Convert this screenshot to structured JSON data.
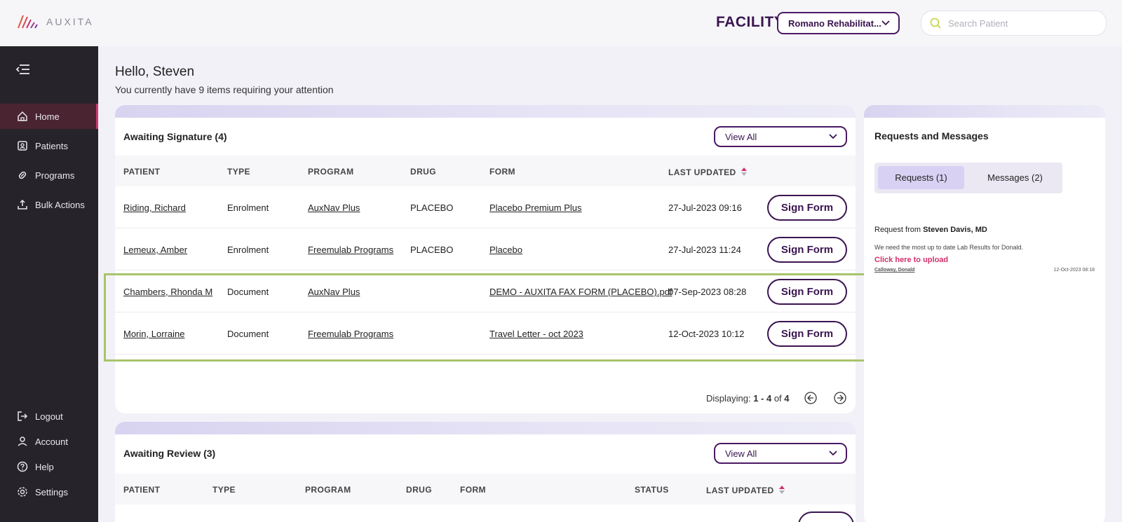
{
  "header": {
    "logo_text": "AUXITA",
    "facility_label": "FACILITY",
    "facility_value": "Romano Rehabilitat...",
    "search_placeholder": "Search Patient"
  },
  "sidebar": {
    "items": [
      {
        "label": "Home",
        "icon": "home-icon",
        "active": true
      },
      {
        "label": "Patients",
        "icon": "patients-icon"
      },
      {
        "label": "Programs",
        "icon": "programs-icon"
      },
      {
        "label": "Bulk Actions",
        "icon": "upload-icon"
      }
    ],
    "bottom_items": [
      {
        "label": "Logout",
        "icon": "logout-icon"
      },
      {
        "label": "Account",
        "icon": "account-icon"
      },
      {
        "label": "Help",
        "icon": "help-icon"
      },
      {
        "label": "Settings",
        "icon": "gear-icon"
      }
    ]
  },
  "greeting": {
    "title": "Hello, Steven",
    "subtitle": "You currently have 9 items requiring your attention"
  },
  "awaiting_signature": {
    "title": "Awaiting Signature (4)",
    "view_all": "View All",
    "columns": [
      "PATIENT",
      "TYPE",
      "PROGRAM",
      "DRUG",
      "FORM",
      "LAST UPDATED"
    ],
    "rows": [
      {
        "patient": "Riding, Richard",
        "type": "Enrolment",
        "program": "AuxNav Plus",
        "drug": "PLACEBO",
        "form": "Placebo Premium Plus",
        "updated": "27-Jul-2023 09:16",
        "action": "Sign Form"
      },
      {
        "patient": "Lemeux, Amber",
        "type": "Enrolment",
        "program": "Freemulab Programs",
        "drug": "PLACEBO",
        "form": "Placebo",
        "updated": "27-Jul-2023 11:24",
        "action": "Sign Form"
      },
      {
        "patient": "Chambers, Rhonda M",
        "type": "Document",
        "program": "AuxNav Plus",
        "drug": "",
        "form": "DEMO - AUXITA FAX FORM (PLACEBO).pdf",
        "updated": "07-Sep-2023 08:28",
        "action": "Sign Form"
      },
      {
        "patient": "Morin, Lorraine",
        "type": "Document",
        "program": "Freemulab Programs",
        "drug": "",
        "form": "Travel Letter - oct 2023",
        "updated": "12-Oct-2023 10:12",
        "action": "Sign Form"
      }
    ],
    "pager": {
      "prefix": "Displaying: ",
      "range": "1 - 4",
      "of": " of ",
      "total": "4"
    }
  },
  "awaiting_review": {
    "title": "Awaiting Review (3)",
    "view_all": "View All",
    "columns": [
      "PATIENT",
      "TYPE",
      "PROGRAM",
      "DRUG",
      "FORM",
      "STATUS",
      "LAST UPDATED"
    ]
  },
  "requests": {
    "title": "Requests and Messages",
    "tabs": [
      "Requests (1)",
      "Messages (2)"
    ],
    "item": {
      "from_prefix": "Request from ",
      "from_name": "Steven Davis, MD",
      "message": "We need the most up to date Lab Results for Donald.",
      "upload_link": "Click here to upload",
      "patient": "Calloway, Donald",
      "date": "12-Oct-2023 08:18"
    }
  },
  "colors": {
    "accent": "#3a1450",
    "active_nav": "#c93a6c",
    "highlight": "#a8c46a",
    "link_pink": "#d0306a"
  }
}
